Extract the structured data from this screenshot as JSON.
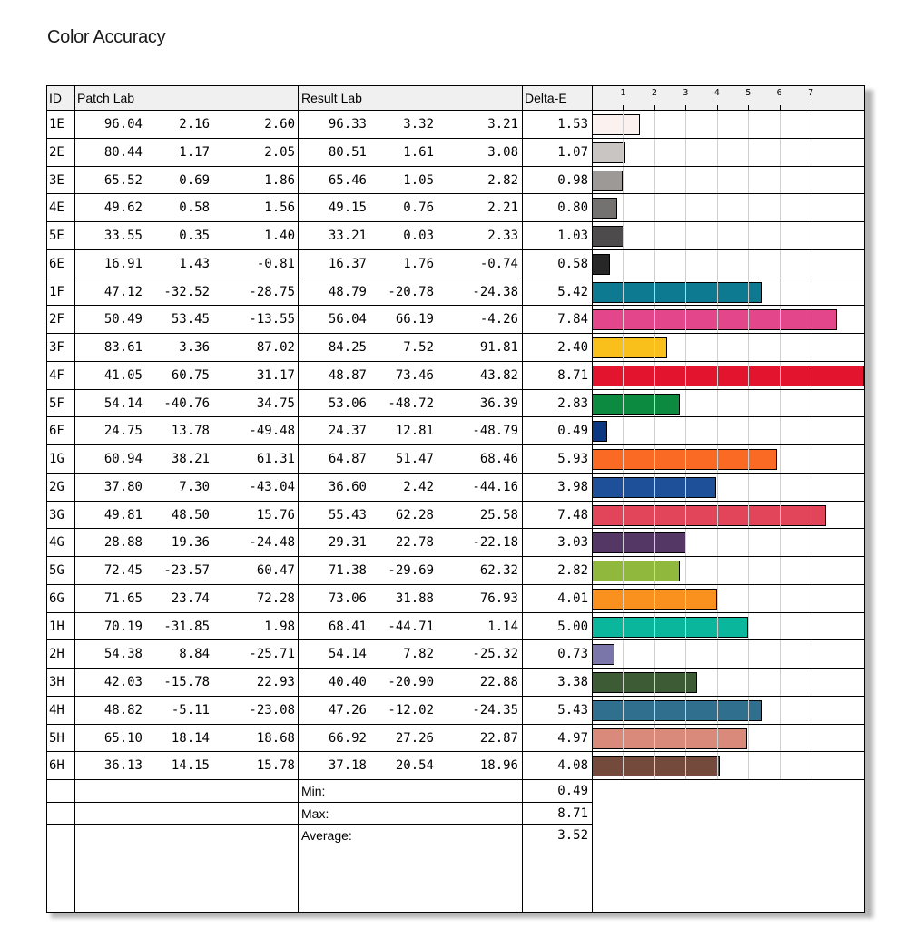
{
  "title": "Color Accuracy",
  "headers": {
    "id": "ID",
    "patch": "Patch Lab",
    "result": "Result Lab",
    "delta": "Delta-E"
  },
  "chart_data": {
    "type": "bar",
    "orientation": "horizontal",
    "title": "Color Accuracy",
    "x_ticks": [
      "1",
      "2",
      "3",
      "4",
      "5",
      "6",
      "7"
    ],
    "xlim": [
      0,
      8.71
    ],
    "grid": true,
    "categories": [
      "1E",
      "2E",
      "3E",
      "4E",
      "5E",
      "6E",
      "1F",
      "2F",
      "3F",
      "4F",
      "5F",
      "6F",
      "1G",
      "2G",
      "3G",
      "4G",
      "5G",
      "6G",
      "1H",
      "2H",
      "3H",
      "4H",
      "5H",
      "6H"
    ],
    "values": [
      1.53,
      1.07,
      0.98,
      0.8,
      1.03,
      0.58,
      5.42,
      7.84,
      2.4,
      8.71,
      2.83,
      0.49,
      5.93,
      3.98,
      7.48,
      3.03,
      2.82,
      4.01,
      5.0,
      0.73,
      3.38,
      5.43,
      4.97,
      4.08
    ]
  },
  "rows": [
    {
      "id": "1E",
      "p": [
        "96.04",
        "2.16",
        "2.60"
      ],
      "r": [
        "96.33",
        "3.32",
        "3.21"
      ],
      "de": "1.53",
      "color": "#fbf2f0"
    },
    {
      "id": "2E",
      "p": [
        "80.44",
        "1.17",
        "2.05"
      ],
      "r": [
        "80.51",
        "1.61",
        "3.08"
      ],
      "de": "1.07",
      "color": "#c9c5c3"
    },
    {
      "id": "3E",
      "p": [
        "65.52",
        "0.69",
        "1.86"
      ],
      "r": [
        "65.46",
        "1.05",
        "2.82"
      ],
      "de": "0.98",
      "color": "#9c9996"
    },
    {
      "id": "4E",
      "p": [
        "49.62",
        "0.58",
        "1.56"
      ],
      "r": [
        "49.15",
        "0.76",
        "2.21"
      ],
      "de": "0.80",
      "color": "#747270"
    },
    {
      "id": "5E",
      "p": [
        "33.55",
        "0.35",
        "1.40"
      ],
      "r": [
        "33.21",
        "0.03",
        "2.33"
      ],
      "de": "1.03",
      "color": "#4d4b4b"
    },
    {
      "id": "6E",
      "p": [
        "16.91",
        "1.43",
        "-0.81"
      ],
      "r": [
        "16.37",
        "1.76",
        "-0.74"
      ],
      "de": "0.58",
      "color": "#272727"
    },
    {
      "id": "1F",
      "p": [
        "47.12",
        "-32.52",
        "-28.75"
      ],
      "r": [
        "48.79",
        "-20.78",
        "-24.38"
      ],
      "de": "5.42",
      "color": "#0e7a92"
    },
    {
      "id": "2F",
      "p": [
        "50.49",
        "53.45",
        "-13.55"
      ],
      "r": [
        "56.04",
        "66.19",
        "-4.26"
      ],
      "de": "7.84",
      "color": "#e4468c"
    },
    {
      "id": "3F",
      "p": [
        "83.61",
        "3.36",
        "87.02"
      ],
      "r": [
        "84.25",
        "7.52",
        "91.81"
      ],
      "de": "2.40",
      "color": "#f9c01c"
    },
    {
      "id": "4F",
      "p": [
        "41.05",
        "60.75",
        "31.17"
      ],
      "r": [
        "48.87",
        "73.46",
        "43.82"
      ],
      "de": "8.71",
      "color": "#e3152e"
    },
    {
      "id": "5F",
      "p": [
        "54.14",
        "-40.76",
        "34.75"
      ],
      "r": [
        "53.06",
        "-48.72",
        "36.39"
      ],
      "de": "2.83",
      "color": "#0c8b40"
    },
    {
      "id": "6F",
      "p": [
        "24.75",
        "13.78",
        "-49.48"
      ],
      "r": [
        "24.37",
        "12.81",
        "-48.79"
      ],
      "de": "0.49",
      "color": "#0c3883"
    },
    {
      "id": "1G",
      "p": [
        "60.94",
        "38.21",
        "61.31"
      ],
      "r": [
        "64.87",
        "51.47",
        "68.46"
      ],
      "de": "5.93",
      "color": "#fb6a24"
    },
    {
      "id": "2G",
      "p": [
        "37.80",
        "7.30",
        "-43.04"
      ],
      "r": [
        "36.60",
        "2.42",
        "-44.16"
      ],
      "de": "3.98",
      "color": "#1e4f99"
    },
    {
      "id": "3G",
      "p": [
        "49.81",
        "48.50",
        "15.76"
      ],
      "r": [
        "55.43",
        "62.28",
        "25.58"
      ],
      "de": "7.48",
      "color": "#e2455a"
    },
    {
      "id": "4G",
      "p": [
        "28.88",
        "19.36",
        "-24.48"
      ],
      "r": [
        "29.31",
        "22.78",
        "-22.18"
      ],
      "de": "3.03",
      "color": "#553765"
    },
    {
      "id": "5G",
      "p": [
        "72.45",
        "-23.57",
        "60.47"
      ],
      "r": [
        "71.38",
        "-29.69",
        "62.32"
      ],
      "de": "2.82",
      "color": "#8fb83c"
    },
    {
      "id": "6G",
      "p": [
        "71.65",
        "23.74",
        "72.28"
      ],
      "r": [
        "73.06",
        "31.88",
        "76.93"
      ],
      "de": "4.01",
      "color": "#fa911f"
    },
    {
      "id": "1H",
      "p": [
        "70.19",
        "-31.85",
        "1.98"
      ],
      "r": [
        "68.41",
        "-44.71",
        "1.14"
      ],
      "de": "5.00",
      "color": "#0bb79c"
    },
    {
      "id": "2H",
      "p": [
        "54.38",
        "8.84",
        "-25.71"
      ],
      "r": [
        "54.14",
        "7.82",
        "-25.32"
      ],
      "de": "0.73",
      "color": "#7a76aa"
    },
    {
      "id": "3H",
      "p": [
        "42.03",
        "-15.78",
        "22.93"
      ],
      "r": [
        "40.40",
        "-20.90",
        "22.88"
      ],
      "de": "3.38",
      "color": "#3d5c35"
    },
    {
      "id": "4H",
      "p": [
        "48.82",
        "-5.11",
        "-23.08"
      ],
      "r": [
        "47.26",
        "-12.02",
        "-24.35"
      ],
      "de": "5.43",
      "color": "#30708e"
    },
    {
      "id": "5H",
      "p": [
        "65.10",
        "18.14",
        "18.68"
      ],
      "r": [
        "66.92",
        "27.26",
        "22.87"
      ],
      "de": "4.97",
      "color": "#d98a7a"
    },
    {
      "id": "6H",
      "p": [
        "36.13",
        "14.15",
        "15.78"
      ],
      "r": [
        "37.18",
        "20.54",
        "18.96"
      ],
      "de": "4.08",
      "color": "#734a3b"
    }
  ],
  "summary": [
    {
      "label": "Min:",
      "value": "0.49"
    },
    {
      "label": "Max:",
      "value": "8.71"
    },
    {
      "label": "Average:",
      "value": "3.52"
    }
  ]
}
